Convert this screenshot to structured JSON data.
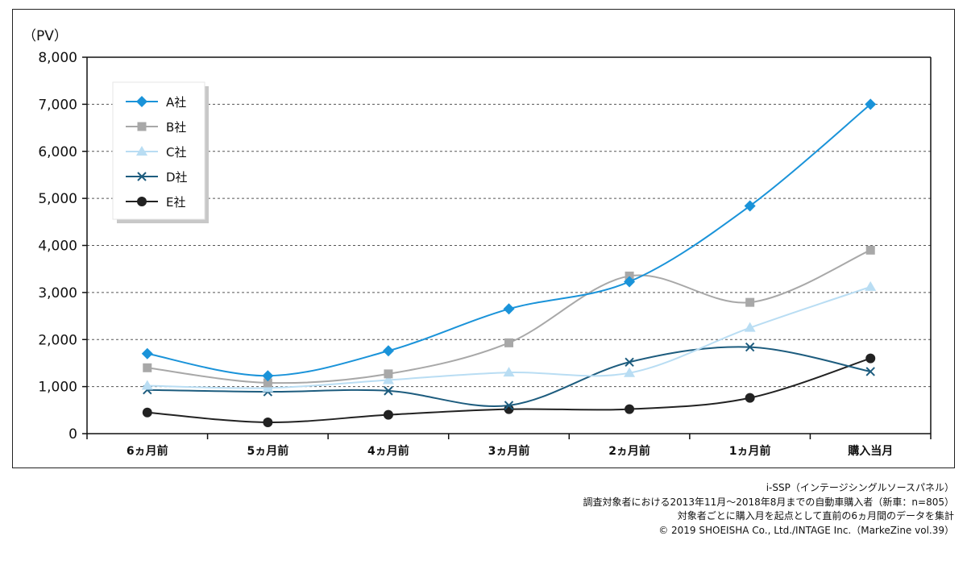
{
  "chart_data": {
    "type": "line",
    "ylabel": "（PV）",
    "xlabel": "",
    "ylim": [
      0,
      8000
    ],
    "yticks": [
      0,
      1000,
      2000,
      3000,
      4000,
      5000,
      6000,
      7000,
      8000
    ],
    "ytick_labels": [
      "0",
      "1,000",
      "2,000",
      "3,000",
      "4,000",
      "5,000",
      "6,000",
      "7,000",
      "8,000"
    ],
    "categories": [
      "6ヵ月前",
      "5ヵ月前",
      "4ヵ月前",
      "3ヵ月前",
      "2ヵ月前",
      "1ヵ月前",
      "購入当月"
    ],
    "grid": "horizontal dashed",
    "legend_position": "top-left",
    "series": [
      {
        "name": "A社",
        "values": [
          1700,
          1230,
          1760,
          2650,
          3230,
          4840,
          7000
        ],
        "color": "#1a93d9",
        "marker": "diamond"
      },
      {
        "name": "B社",
        "values": [
          1400,
          1080,
          1270,
          1930,
          3350,
          2790,
          3900
        ],
        "color": "#a8a8a8",
        "marker": "square"
      },
      {
        "name": "C社",
        "values": [
          1020,
          970,
          1140,
          1300,
          1290,
          2250,
          3120
        ],
        "color": "#b9ddf3",
        "marker": "triangle"
      },
      {
        "name": "D社",
        "values": [
          930,
          890,
          910,
          600,
          1520,
          1840,
          1320
        ],
        "color": "#1d5c7e",
        "marker": "x"
      },
      {
        "name": "E社",
        "values": [
          450,
          240,
          400,
          520,
          520,
          760,
          1600
        ],
        "color": "#222222",
        "marker": "circle"
      }
    ]
  },
  "notes": [
    "i-SSP（インテージシングルソースパネル）",
    "調査対象者における2013年11月～2018年8月までの自動車購入者（新車：n=805）",
    "対象者ごとに購入月を起点として直前の6ヵ月間のデータを集計",
    "© 2019 SHOEISHA Co., Ltd./INTAGE Inc.（MarkeZine vol.39）"
  ]
}
